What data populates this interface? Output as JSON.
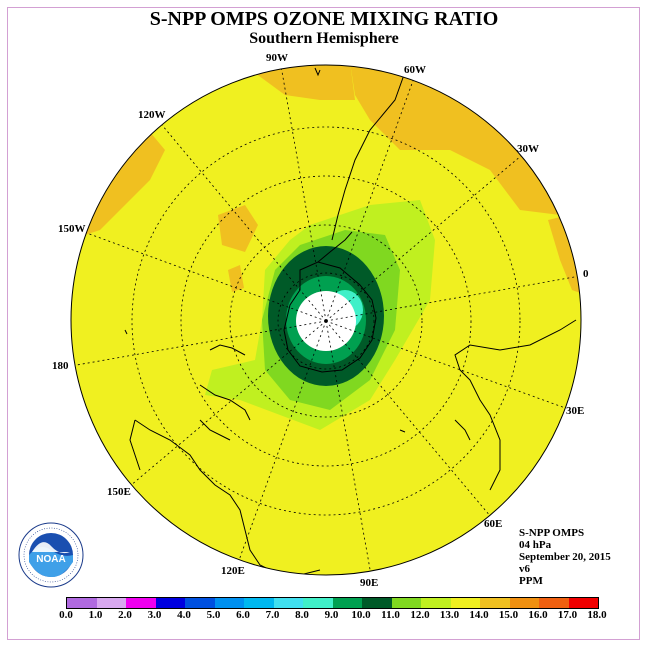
{
  "title": "S-NPP OMPS OZONE MIXING RATIO",
  "subtitle": "Southern Hemisphere",
  "longitude_labels": [
    "90W",
    "60W",
    "30W",
    "0",
    "30E",
    "60E",
    "90E",
    "120E",
    "150E",
    "180",
    "150W",
    "120W"
  ],
  "info": {
    "instrument": "S-NPP OMPS",
    "level": "04 hPa",
    "date": "September 20, 2015",
    "version": "v6",
    "units": "PPM"
  },
  "colorbar": {
    "labels": [
      "0.0",
      "1.0",
      "2.0",
      "3.0",
      "4.0",
      "5.0",
      "6.0",
      "7.0",
      "8.0",
      "9.0",
      "10.0",
      "11.0",
      "12.0",
      "13.0",
      "14.0",
      "15.0",
      "16.0",
      "17.0",
      "18.0"
    ],
    "colors": [
      "#b06ae0",
      "#d8a8f0",
      "#f000f0",
      "#0000e0",
      "#0050e0",
      "#0090f0",
      "#00b8f0",
      "#40e0f0",
      "#40f0c8",
      "#00a050",
      "#005a28",
      "#80d820",
      "#c0f020",
      "#f0f020",
      "#f0c020",
      "#f09010",
      "#f06010",
      "#f00000",
      "#8b5a3c"
    ]
  },
  "logo_text": "NOAA",
  "logo_ring_text": "NATIONAL OCEANIC AND ATMOSPHERIC ADMINISTRATION · U.S. DEPARTMENT OF COMMERCE"
}
